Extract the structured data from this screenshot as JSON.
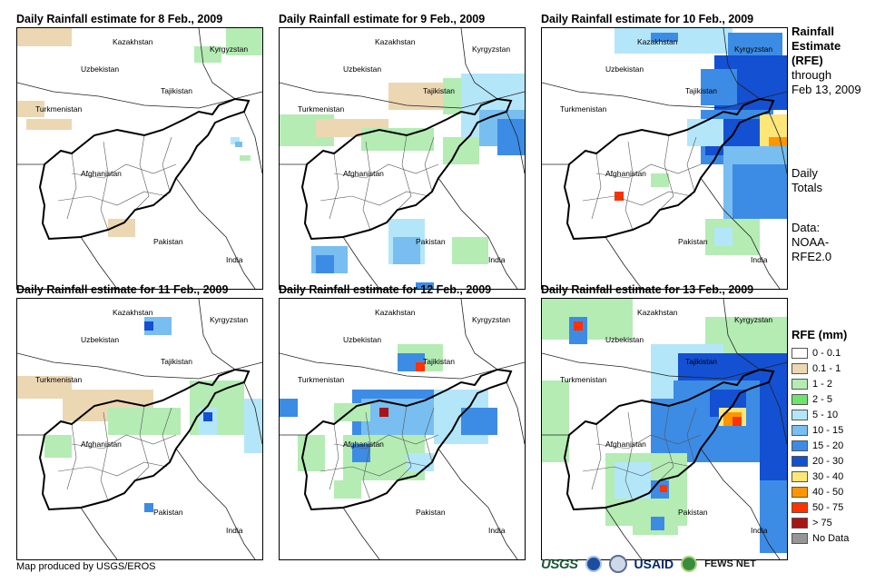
{
  "panels": [
    {
      "title": "Daily Rainfall estimate for 8 Feb., 2009"
    },
    {
      "title": "Daily Rainfall estimate for 9 Feb., 2009"
    },
    {
      "title": "Daily Rainfall estimate for 10 Feb., 2009"
    },
    {
      "title": "Daily Rainfall estimate for 11 Feb., 2009"
    },
    {
      "title": "Daily Rainfall estimate for 12 Feb., 2009"
    },
    {
      "title": "Daily Rainfall estimate for 13 Feb., 2009"
    }
  ],
  "map_labels": {
    "kazakhstan": "Kazakhstan",
    "kyrgyzstan": "Kyrgyzstan",
    "uzbekistan": "Uzbekistan",
    "tajikistan": "Tajikistan",
    "turkmenistan": "Turkmenistan",
    "afghanistan": "Afghanistan",
    "pakistan": "Pakistan",
    "india": "India"
  },
  "side": {
    "heading_1": "Rainfall",
    "heading_2": "Estimate",
    "heading_3": "(RFE)",
    "through": "through",
    "date": "Feb 13, 2009",
    "daily_1": "Daily",
    "daily_2": "Totals",
    "data_1": "Data:",
    "data_2": "NOAA-",
    "data_3": "RFE2.0"
  },
  "legend": {
    "title": "RFE (mm)",
    "items": [
      {
        "label": "0 - 0.1",
        "color": "#ffffff"
      },
      {
        "label": "0.1 - 1",
        "color": "#ecd7b3"
      },
      {
        "label": "1 - 2",
        "color": "#b4ecb4"
      },
      {
        "label": "2 - 5",
        "color": "#6ee46e"
      },
      {
        "label": "5 - 10",
        "color": "#b4e6fa"
      },
      {
        "label": "10 - 15",
        "color": "#78bef0"
      },
      {
        "label": "15 - 20",
        "color": "#3c8ce6"
      },
      {
        "label": "20 - 30",
        "color": "#1450d2"
      },
      {
        "label": "30 - 40",
        "color": "#ffe678"
      },
      {
        "label": "40 - 50",
        "color": "#ff9600"
      },
      {
        "label": "50 - 75",
        "color": "#ff3200"
      },
      {
        "label": "> 75",
        "color": "#aa1414"
      },
      {
        "label": "No Data",
        "color": "#969696"
      }
    ]
  },
  "footer": {
    "credit": "Map produced by USGS/EROS",
    "usgs": "USGS",
    "usaid": "USAID",
    "fews": "FEWS NET"
  }
}
